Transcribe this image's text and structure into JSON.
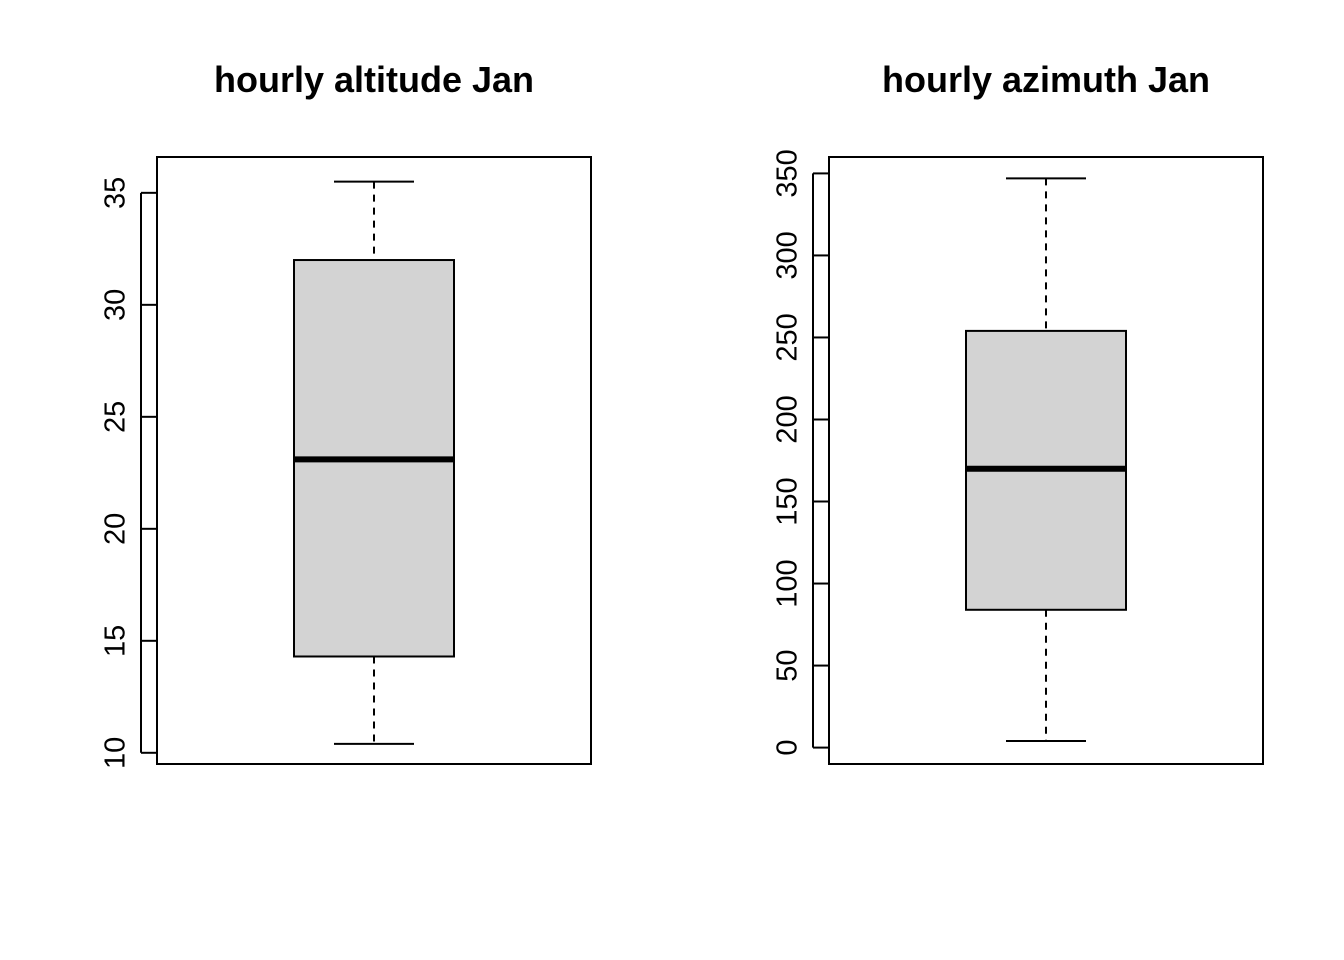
{
  "chart_data": [
    {
      "type": "box",
      "title": "hourly altitude Jan",
      "xlabel": "",
      "ylabel": "",
      "ylim": [
        9.5,
        36.6
      ],
      "yticks": [
        10,
        15,
        20,
        25,
        30,
        35
      ],
      "grid": false,
      "legend": "none",
      "box": {
        "min": 10.4,
        "q1": 14.3,
        "median": 23.1,
        "q3": 32.0,
        "max": 35.5
      },
      "colors": {
        "box_fill": "#d3d3d3",
        "stroke": "#000000"
      }
    },
    {
      "type": "box",
      "title": "hourly azimuth Jan",
      "xlabel": "",
      "ylabel": "",
      "ylim": [
        -10,
        360
      ],
      "yticks": [
        0,
        50,
        100,
        150,
        200,
        250,
        300,
        350
      ],
      "grid": false,
      "legend": "none",
      "box": {
        "min": 4,
        "q1": 84,
        "median": 170,
        "q3": 254,
        "max": 347
      },
      "colors": {
        "box_fill": "#d3d3d3",
        "stroke": "#000000"
      }
    }
  ]
}
